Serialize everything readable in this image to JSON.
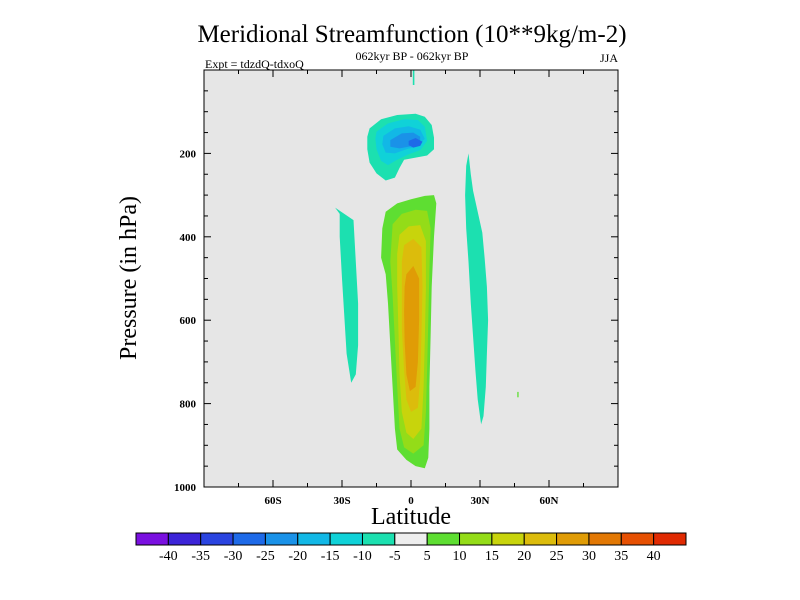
{
  "chart_data": {
    "type": "heatmap",
    "title": "Meridional Streamfunction (10**9kg/m-2)",
    "subtitle_left": "Expt = tdzdQ-tdxoQ",
    "subtitle_center": "062kyr BP - 062kyr BP",
    "subtitle_right": "JJA",
    "xlabel": "Latitude",
    "ylabel": "Pressure (in hPa)",
    "xlim": [
      -90,
      90
    ],
    "ylim": [
      0,
      1000
    ],
    "y_reversed": true,
    "x_ticks": [
      {
        "value": -60,
        "label": "60S"
      },
      {
        "value": -30,
        "label": "30S"
      },
      {
        "value": 0,
        "label": "0"
      },
      {
        "value": 30,
        "label": "30N"
      },
      {
        "value": 60,
        "label": "60N"
      }
    ],
    "y_ticks": [
      {
        "value": 200,
        "label": "200"
      },
      {
        "value": 400,
        "label": "400"
      },
      {
        "value": 600,
        "label": "600"
      },
      {
        "value": 800,
        "label": "800"
      },
      {
        "value": 1000,
        "label": "1000"
      }
    ],
    "colorbar": {
      "levels": [
        "-40",
        "-35",
        "-30",
        "-25",
        "-20",
        "-15",
        "-10",
        "-5",
        "5",
        "10",
        "15",
        "20",
        "25",
        "30",
        "35",
        "40"
      ],
      "colors": [
        "#7a10e0",
        "#3c24d8",
        "#2a44e0",
        "#1e6ae8",
        "#1a92e8",
        "#12b8e6",
        "#10d2d8",
        "#1ce0b0",
        "#eeeeee",
        "#5ede32",
        "#94dc18",
        "#c8d40c",
        "#dcbc0c",
        "#e09c06",
        "#e27804",
        "#e65002",
        "#e02a02"
      ]
    },
    "background_color": "#e6e6e6",
    "contours": [
      {
        "name": "south-hadley-outer",
        "level": -5,
        "color": "#1ce0b0",
        "points": [
          [
            -33,
            330
          ],
          [
            -31,
            345
          ],
          [
            -31,
            400
          ],
          [
            -30,
            500
          ],
          [
            -29,
            590
          ],
          [
            -28,
            680
          ],
          [
            -26,
            750
          ],
          [
            -24,
            730
          ],
          [
            -23,
            660
          ],
          [
            -23,
            560
          ],
          [
            -24,
            460
          ],
          [
            -25,
            360
          ]
        ]
      },
      {
        "name": "upper-cell-outer",
        "level": -5,
        "color": "#1ce0b0",
        "points": [
          [
            -18,
            140
          ],
          [
            -13,
            118
          ],
          [
            -6,
            108
          ],
          [
            2,
            105
          ],
          [
            6,
            112
          ],
          [
            9,
            132
          ],
          [
            10,
            162
          ],
          [
            10,
            190
          ],
          [
            7,
            205
          ],
          [
            2,
            210
          ],
          [
            -3,
            215
          ],
          [
            -5,
            235
          ],
          [
            -7,
            258
          ],
          [
            -11,
            265
          ],
          [
            -15,
            248
          ],
          [
            -18,
            222
          ],
          [
            -19,
            190
          ],
          [
            -19,
            160
          ]
        ]
      },
      {
        "name": "upper-cell-10",
        "level": -10,
        "color": "#10d2d8",
        "points": [
          [
            -15,
            148
          ],
          [
            -10,
            128
          ],
          [
            -3,
            118
          ],
          [
            3,
            120
          ],
          [
            6,
            136
          ],
          [
            7,
            170
          ],
          [
            4,
            192
          ],
          [
            -1,
            202
          ],
          [
            -6,
            215
          ],
          [
            -10,
            228
          ],
          [
            -13,
            218
          ],
          [
            -15,
            190
          ],
          [
            -15.5,
            165
          ]
        ]
      },
      {
        "name": "upper-cell-15",
        "level": -15,
        "color": "#12b8e6",
        "points": [
          [
            -12,
            158
          ],
          [
            -7,
            140
          ],
          [
            -1,
            135
          ],
          [
            4,
            143
          ],
          [
            6,
            165
          ],
          [
            3,
            183
          ],
          [
            -2,
            190
          ],
          [
            -7,
            200
          ],
          [
            -11,
            198
          ],
          [
            -12.5,
            178
          ]
        ]
      },
      {
        "name": "upper-cell-20",
        "level": -20,
        "color": "#1a92e8",
        "points": [
          [
            -9,
            168
          ],
          [
            -4,
            152
          ],
          [
            1,
            150
          ],
          [
            4,
            160
          ],
          [
            4,
            175
          ],
          [
            0,
            183
          ],
          [
            -5,
            188
          ],
          [
            -9,
            184
          ]
        ]
      },
      {
        "name": "upper-cell-25",
        "level": -25,
        "color": "#1e6ae8",
        "points": [
          [
            -1,
            170
          ],
          [
            2,
            163
          ],
          [
            5,
            172
          ],
          [
            4,
            182
          ],
          [
            1,
            186
          ],
          [
            -1,
            180
          ]
        ]
      },
      {
        "name": "north-hadley-outer",
        "level": -5,
        "color": "#1ce0b0",
        "points": [
          [
            25,
            200
          ],
          [
            26,
            250
          ],
          [
            27,
            290
          ],
          [
            29,
            340
          ],
          [
            31,
            390
          ],
          [
            32,
            450
          ],
          [
            33,
            520
          ],
          [
            33.5,
            600
          ],
          [
            33,
            680
          ],
          [
            32.5,
            760
          ],
          [
            31.5,
            830
          ],
          [
            30.5,
            850
          ],
          [
            29,
            790
          ],
          [
            28,
            720
          ],
          [
            27,
            640
          ],
          [
            26,
            560
          ],
          [
            25,
            460
          ],
          [
            24,
            380
          ],
          [
            23.5,
            300
          ],
          [
            24,
            230
          ]
        ]
      },
      {
        "name": "tropopause-filament",
        "level": -5,
        "color": "#1ce0b0",
        "points": [
          [
            0.8,
            0
          ],
          [
            1.5,
            0
          ],
          [
            1.5,
            36
          ],
          [
            0.8,
            36
          ]
        ]
      },
      {
        "name": "main-cell-5",
        "level": 5,
        "color": "#5ede32",
        "points": [
          [
            -11,
            340
          ],
          [
            -6,
            320
          ],
          [
            0,
            310
          ],
          [
            6,
            302
          ],
          [
            10,
            300
          ],
          [
            11,
            320
          ],
          [
            10,
            400
          ],
          [
            9,
            520
          ],
          [
            8.5,
            640
          ],
          [
            8,
            760
          ],
          [
            8,
            860
          ],
          [
            7.5,
            930
          ],
          [
            6,
            955
          ],
          [
            2,
            950
          ],
          [
            -2,
            935
          ],
          [
            -6,
            910
          ],
          [
            -7,
            860
          ],
          [
            -8,
            760
          ],
          [
            -9,
            660
          ],
          [
            -10,
            560
          ],
          [
            -11,
            490
          ],
          [
            -13,
            450
          ],
          [
            -12.5,
            380
          ]
        ]
      },
      {
        "name": "main-cell-10",
        "level": 10,
        "color": "#94dc18",
        "points": [
          [
            -8,
            370
          ],
          [
            -4,
            345
          ],
          [
            2,
            335
          ],
          [
            7,
            338
          ],
          [
            8.5,
            380
          ],
          [
            8,
            480
          ],
          [
            7.5,
            600
          ],
          [
            7,
            720
          ],
          [
            6.5,
            820
          ],
          [
            5.5,
            900
          ],
          [
            1,
            920
          ],
          [
            -3,
            905
          ],
          [
            -5,
            860
          ],
          [
            -6,
            760
          ],
          [
            -7,
            650
          ],
          [
            -8,
            540
          ],
          [
            -9,
            460
          ]
        ]
      },
      {
        "name": "main-cell-15",
        "level": 15,
        "color": "#c8d40c",
        "points": [
          [
            -5,
            395
          ],
          [
            -1,
            375
          ],
          [
            4,
            372
          ],
          [
            6.5,
            410
          ],
          [
            6.5,
            520
          ],
          [
            6,
            650
          ],
          [
            5.5,
            760
          ],
          [
            4.5,
            860
          ],
          [
            1,
            885
          ],
          [
            -2,
            870
          ],
          [
            -4,
            820
          ],
          [
            -5,
            730
          ],
          [
            -5.5,
            620
          ],
          [
            -6,
            520
          ],
          [
            -6,
            440
          ]
        ]
      },
      {
        "name": "main-cell-20",
        "level": 20,
        "color": "#dcbc0c",
        "points": [
          [
            -3,
            420
          ],
          [
            1,
            405
          ],
          [
            4.5,
            425
          ],
          [
            5,
            520
          ],
          [
            4.5,
            640
          ],
          [
            4,
            740
          ],
          [
            3,
            810
          ],
          [
            0,
            820
          ],
          [
            -2,
            790
          ],
          [
            -3,
            720
          ],
          [
            -4,
            620
          ],
          [
            -4,
            520
          ],
          [
            -4,
            460
          ]
        ]
      },
      {
        "name": "main-cell-25",
        "level": 25,
        "color": "#e09c06",
        "points": [
          [
            -2,
            490
          ],
          [
            1,
            470
          ],
          [
            3.5,
            500
          ],
          [
            3.5,
            600
          ],
          [
            3,
            700
          ],
          [
            2,
            760
          ],
          [
            -0.5,
            770
          ],
          [
            -2,
            730
          ],
          [
            -2.8,
            650
          ],
          [
            -3,
            580
          ],
          [
            -2.8,
            520
          ]
        ]
      },
      {
        "name": "small-blob-60N",
        "level": 5,
        "color": "#5ede32",
        "points": [
          [
            46.2,
            772
          ],
          [
            46.8,
            772
          ],
          [
            46.8,
            785
          ],
          [
            46.2,
            785
          ]
        ]
      }
    ]
  }
}
